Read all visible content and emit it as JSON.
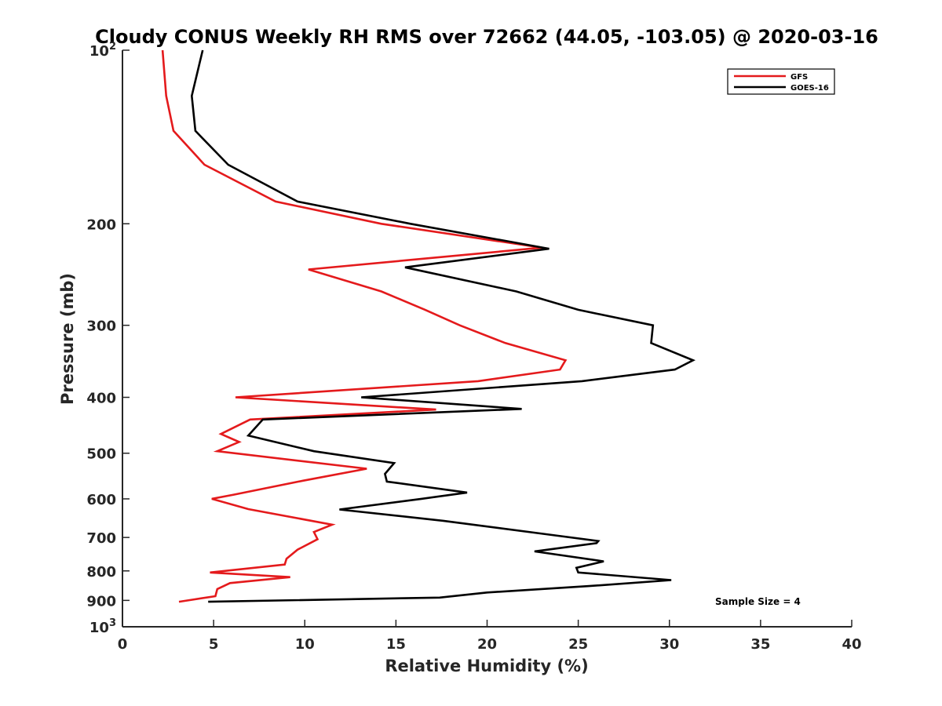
{
  "chart_data": {
    "type": "line",
    "title": "Cloudy CONUS Weekly RH RMS over 72662 (44.05, -103.05) @ 2020-03-16",
    "xlabel": "Relative Humidity (%)",
    "ylabel": "Pressure (mb)",
    "xlim": [
      0,
      40
    ],
    "ylim": [
      100,
      1000
    ],
    "y_scale": "log",
    "y_reversed": true,
    "x_ticks": [
      "0",
      "5",
      "10",
      "15",
      "20",
      "25",
      "30",
      "35",
      "40"
    ],
    "y_ticks": [
      {
        "value": 100,
        "base": "10",
        "exp": "2"
      },
      {
        "value": 200,
        "label": "200"
      },
      {
        "value": 300,
        "label": "300"
      },
      {
        "value": 400,
        "label": "400"
      },
      {
        "value": 500,
        "label": "500"
      },
      {
        "value": 600,
        "label": "600"
      },
      {
        "value": 700,
        "label": "700"
      },
      {
        "value": 800,
        "label": "800"
      },
      {
        "value": 900,
        "label": "900"
      },
      {
        "value": 1000,
        "base": "10",
        "exp": "3"
      }
    ],
    "legend_position": "top-right",
    "annotation": "Sample Size = 4",
    "series": [
      {
        "name": "GFS",
        "color": "#e41a1c",
        "points": [
          [
            2.2,
            100
          ],
          [
            2.4,
            120
          ],
          [
            2.8,
            138
          ],
          [
            4.5,
            158
          ],
          [
            8.4,
            183
          ],
          [
            14.2,
            200
          ],
          [
            23.0,
            220
          ],
          [
            10.2,
            240
          ],
          [
            14.2,
            262
          ],
          [
            16.6,
            282
          ],
          [
            18.5,
            300
          ],
          [
            21.0,
            322
          ],
          [
            24.3,
            345
          ],
          [
            24.0,
            358
          ],
          [
            19.5,
            375
          ],
          [
            6.2,
            400
          ],
          [
            17.2,
            420
          ],
          [
            7.0,
            437
          ],
          [
            5.4,
            463
          ],
          [
            6.4,
            478
          ],
          [
            5.2,
            496
          ],
          [
            13.4,
            532
          ],
          [
            9.9,
            558
          ],
          [
            6.1,
            590
          ],
          [
            4.9,
            600
          ],
          [
            6.9,
            625
          ],
          [
            11.5,
            665
          ],
          [
            10.5,
            685
          ],
          [
            10.7,
            705
          ],
          [
            9.6,
            735
          ],
          [
            9.0,
            762
          ],
          [
            8.9,
            780
          ],
          [
            4.8,
            805
          ],
          [
            9.2,
            820
          ],
          [
            5.9,
            840
          ],
          [
            5.2,
            860
          ],
          [
            5.1,
            885
          ],
          [
            3.1,
            905
          ]
        ]
      },
      {
        "name": "GOES-16",
        "color": "#000000",
        "points": [
          [
            4.4,
            100
          ],
          [
            3.8,
            120
          ],
          [
            4.0,
            138
          ],
          [
            5.8,
            158
          ],
          [
            9.6,
            183
          ],
          [
            15.8,
            200
          ],
          [
            23.4,
            221
          ],
          [
            15.5,
            238
          ],
          [
            21.6,
            262
          ],
          [
            25.0,
            282
          ],
          [
            29.1,
            300
          ],
          [
            29.0,
            322
          ],
          [
            31.3,
            345
          ],
          [
            30.3,
            358
          ],
          [
            25.2,
            375
          ],
          [
            13.1,
            400
          ],
          [
            21.9,
            419
          ],
          [
            7.7,
            437
          ],
          [
            6.9,
            466
          ],
          [
            10.5,
            496
          ],
          [
            14.9,
            520
          ],
          [
            14.4,
            543
          ],
          [
            14.5,
            560
          ],
          [
            18.9,
            585
          ],
          [
            16.4,
            600
          ],
          [
            11.9,
            626
          ],
          [
            17.6,
            655
          ],
          [
            23.4,
            692
          ],
          [
            26.1,
            710
          ],
          [
            26.0,
            716
          ],
          [
            22.6,
            740
          ],
          [
            26.4,
            770
          ],
          [
            24.9,
            790
          ],
          [
            25.0,
            805
          ],
          [
            30.1,
            830
          ],
          [
            25.6,
            850
          ],
          [
            20.0,
            872
          ],
          [
            17.4,
            890
          ],
          [
            4.7,
            905
          ]
        ]
      }
    ]
  }
}
